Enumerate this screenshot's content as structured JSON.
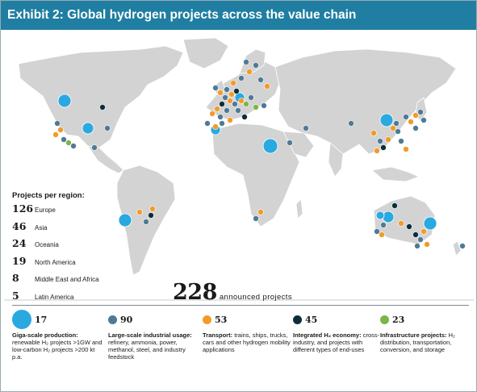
{
  "title": "Exhibit 2: Global hydrogen projects across the value chain",
  "regions_heading": "Projects per region:",
  "regions": [
    {
      "count": "126",
      "label": "Europe"
    },
    {
      "count": "46",
      "label": "Asia"
    },
    {
      "count": "24",
      "label": "Oceania"
    },
    {
      "count": "19",
      "label": "North America"
    },
    {
      "count": "8",
      "label": "Middle East and Africa"
    },
    {
      "count": "5",
      "label": "Latin America"
    }
  ],
  "total": {
    "count": "228",
    "label": "announced projects"
  },
  "categories": [
    {
      "count": "17",
      "color": "#29a9e0",
      "title": "Giga-scale production:",
      "desc": "renewable H₂ projects >1GW and low-carbon H₂ projects >200 kt p.a."
    },
    {
      "count": "90",
      "color": "#4e7a96",
      "title": "Large-scale industrial usage:",
      "desc": "refinery, ammonia, power, methanol, steel, and industry feedstock"
    },
    {
      "count": "53",
      "color": "#f39a2a",
      "title": "Transport:",
      "desc": "trains, ships, trucks, cars and other hydrogen mobility applications"
    },
    {
      "count": "45",
      "color": "#0b2f3a",
      "title": "Integrated H₂ economy:",
      "desc": "cross-industry, and projects with different types of end-uses"
    },
    {
      "count": "23",
      "color": "#7ab648",
      "title": "Infrastructure projects:",
      "desc": "H₂ distribution, transportation, conversion, and storage"
    }
  ],
  "legend_colors": {
    "giga": "#29a9e0",
    "industrial": "#4e7a96",
    "transport": "#f39a2a",
    "integrated": "#0b2f3a",
    "infrastructure": "#7ab648",
    "land": "#d3d3d3",
    "title_bar": "#1f7ea1"
  }
}
